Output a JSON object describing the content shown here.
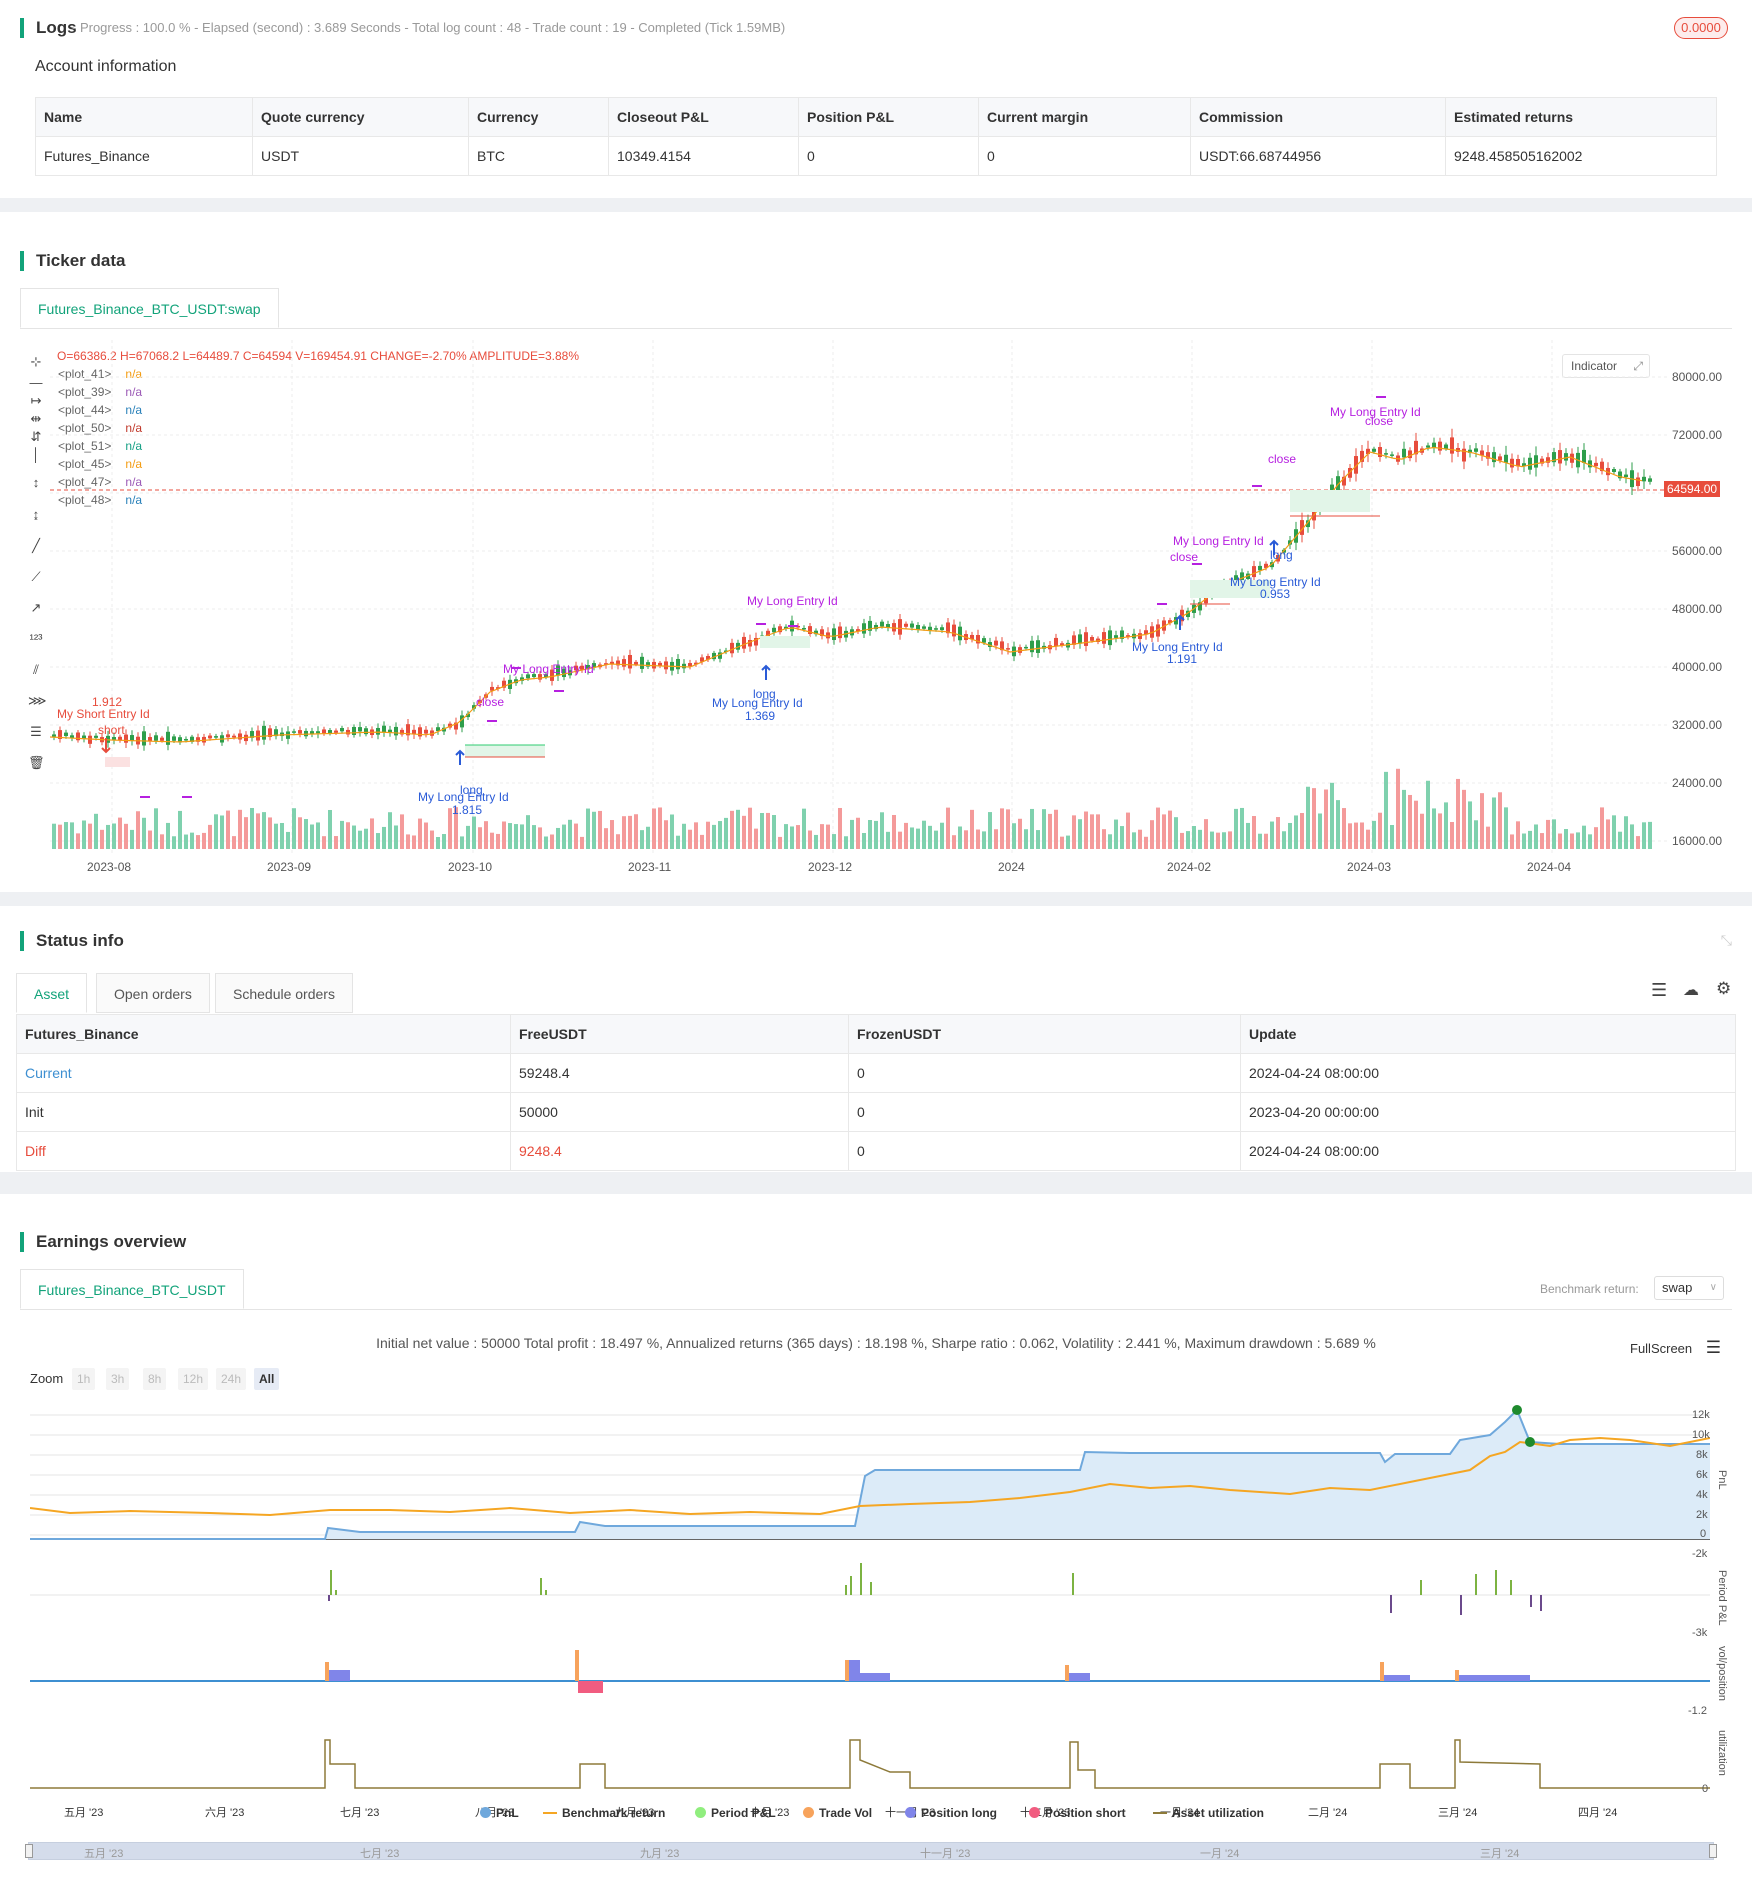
{
  "logs": {
    "title": "Logs",
    "meta": "- Progress : 100.0 % - Elapsed (second) : 3.689  Seconds - Total log count : 48 - Trade count : 19 - Completed (Tick 1.59MB)",
    "badge": "0.0000"
  },
  "account": {
    "title": "Account information",
    "headers": [
      "Name",
      "Quote currency",
      "Currency",
      "Closeout P&L",
      "Position P&L",
      "Current margin",
      "Commission",
      "Estimated returns"
    ],
    "row": [
      "Futures_Binance",
      "USDT",
      "BTC",
      "10349.4154",
      "0",
      "0",
      "USDT:66.68744956",
      "9248.458505162002"
    ]
  },
  "ticker": {
    "title": "Ticker data",
    "tab": "Futures_Binance_BTC_USDT:swap",
    "ohlc": "O=66386.2 H=67068.2 L=64489.7 C=64594 V=169454.91 CHANGE=-2.70% AMPLITUDE=3.88%",
    "plots": [
      {
        "name": "<plot_41>",
        "value": "n/a",
        "color": "#f39c12"
      },
      {
        "name": "<plot_39>",
        "value": "n/a",
        "color": "#9b59b6"
      },
      {
        "name": "<plot_44>",
        "value": "n/a",
        "color": "#2980b9"
      },
      {
        "name": "<plot_50>",
        "value": "n/a",
        "color": "#c0392b"
      },
      {
        "name": "<plot_51>",
        "value": "n/a",
        "color": "#16a085"
      },
      {
        "name": "<plot_45>",
        "value": "n/a",
        "color": "#f39c12"
      },
      {
        "name": "<plot_47>",
        "value": "n/a",
        "color": "#9b59b6"
      },
      {
        "name": "<plot_48>",
        "value": "n/a",
        "color": "#2980b9"
      }
    ],
    "indicator_label": "Indicator",
    "last_price": "64594.00",
    "y_ticks": [
      "80000.00",
      "72000.00",
      "64000.00",
      "56000.00",
      "48000.00",
      "40000.00",
      "32000.00",
      "24000.00",
      "16000.00"
    ],
    "x_ticks": [
      "2023-08",
      "2023-09",
      "2023-10",
      "2023-11",
      "2023-12",
      "2024",
      "2024-02",
      "2024-03",
      "2024-04"
    ],
    "annotations": {
      "short_entry": "My Short Entry Id",
      "short": "short",
      "short_val": "1.912",
      "long_entry": "My Long Entry Id",
      "long": "long",
      "close": "close",
      "v1": "1.815",
      "v2": "1.369",
      "v3": "1.191",
      "v4": "0.953"
    }
  },
  "status": {
    "title": "Status info",
    "tabs": [
      "Asset",
      "Open orders",
      "Schedule orders"
    ],
    "headers": [
      "Futures_Binance",
      "FreeUSDT",
      "FrozenUSDT",
      "Update"
    ],
    "rows": [
      [
        "Current",
        "59248.4",
        "0",
        "2024-04-24 08:00:00"
      ],
      [
        "Init",
        "50000",
        "0",
        "2023-04-20 00:00:00"
      ],
      [
        "Diff",
        "9248.4",
        "0",
        "2024-04-24 08:00:00"
      ]
    ]
  },
  "earnings": {
    "title": "Earnings overview",
    "tab": "Futures_Binance_BTC_USDT",
    "benchmark_label": "Benchmark return:",
    "benchmark_value": "swap",
    "stats": "Initial net value : 50000  Total profit : 18.497 %, Annualized returns (365 days) : 18.198 %, Sharpe ratio : 0.062, Volatility : 2.441 %, Maximum drawdown : 5.689 %",
    "fullscreen": "FullScreen",
    "zoom_label": "Zoom",
    "zoom_options": [
      "1h",
      "3h",
      "8h",
      "12h",
      "24h",
      "All"
    ],
    "pnl_ticks": [
      "12k",
      "10k",
      "8k",
      "6k",
      "4k",
      "2k",
      "0",
      "-2k"
    ],
    "period_tick": "-3k",
    "vol_tick": "-1.2",
    "util_tick": "0",
    "axis_labels": [
      "PnL",
      "Period P&L",
      "vol/position",
      "utilization"
    ],
    "months": [
      "五月 '23",
      "六月 '23",
      "七月 '23",
      "八月 '23",
      "九月 '23",
      "十月 '23",
      "十一月 '23",
      "十二月 '23",
      "一月 '24",
      "二月 '24",
      "三月 '24",
      "四月 '24"
    ],
    "nav_months": [
      "五月 '23",
      "七月 '23",
      "九月 '23",
      "十一月 '23",
      "一月 '24",
      "三月 '24"
    ],
    "legend": [
      {
        "label": "PnL",
        "color": "#6fa8dc",
        "kind": "dot"
      },
      {
        "label": "Benchmark return",
        "color": "#f5a623",
        "kind": "line"
      },
      {
        "label": "Period P&L",
        "color": "#90ee7e",
        "kind": "dot"
      },
      {
        "label": "Trade Vol",
        "color": "#f7a35c",
        "kind": "dot"
      },
      {
        "label": "Position long",
        "color": "#8085e9",
        "kind": "dot"
      },
      {
        "label": "Position short",
        "color": "#f15c80",
        "kind": "dot"
      },
      {
        "label": "Asset utilization",
        "color": "#8d7a3a",
        "kind": "line"
      }
    ]
  }
}
